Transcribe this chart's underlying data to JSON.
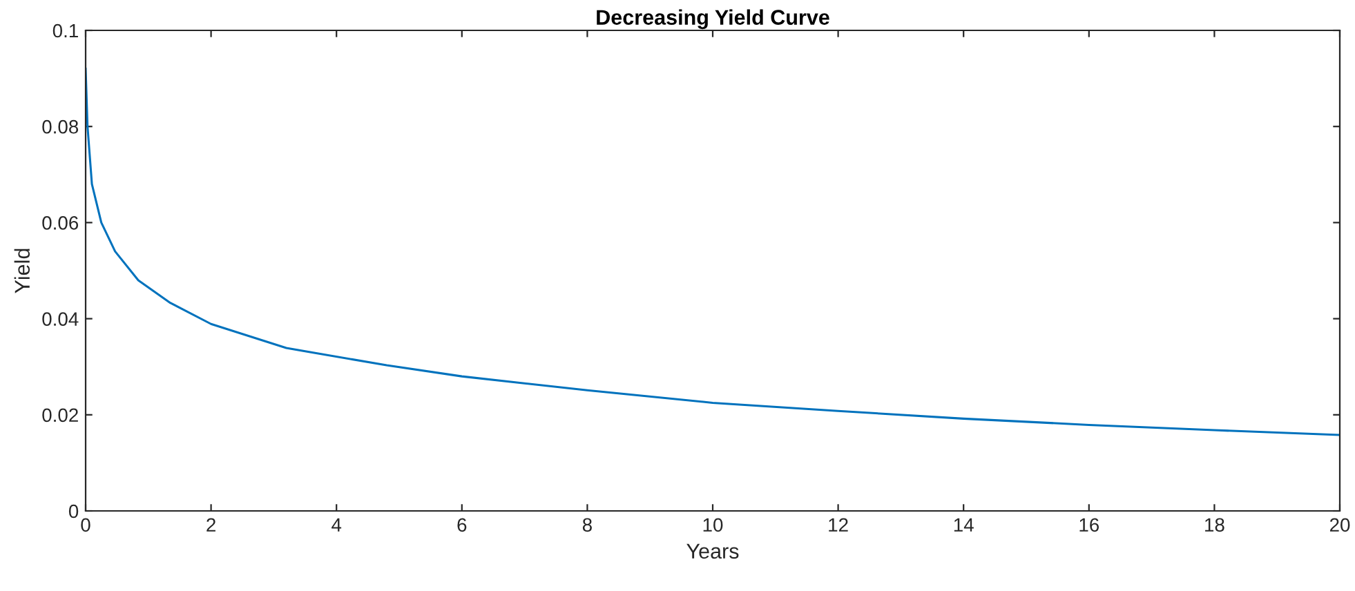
{
  "chart_data": {
    "type": "line",
    "title": "Decreasing Yield Curve",
    "xlabel": "Years",
    "ylabel": "Yield",
    "series": [
      {
        "color": "#0072bd",
        "x": [
          0,
          0.03,
          0.1,
          0.25,
          0.47,
          0.84,
          1.35,
          2.0,
          3.2,
          4.8,
          6.0,
          8.0,
          10.0,
          12.0,
          14.0,
          16.0,
          18.0,
          20.0
        ],
        "values": [
          0.092,
          0.08,
          0.068,
          0.06,
          0.054,
          0.048,
          0.0433,
          0.0389,
          0.0339,
          0.0303,
          0.028,
          0.0251,
          0.0225,
          0.0208,
          0.0192,
          0.0179,
          0.0168,
          0.0158
        ]
      }
    ],
    "xlim": [
      0,
      20
    ],
    "ylim": [
      0,
      0.1
    ],
    "xticks": [
      0,
      2,
      4,
      6,
      8,
      10,
      12,
      14,
      16,
      18,
      20
    ],
    "yticks": [
      0,
      0.02,
      0.04,
      0.06,
      0.08,
      0.1
    ],
    "grid": false,
    "legend": false,
    "marker": "none",
    "line_style": "solid"
  }
}
